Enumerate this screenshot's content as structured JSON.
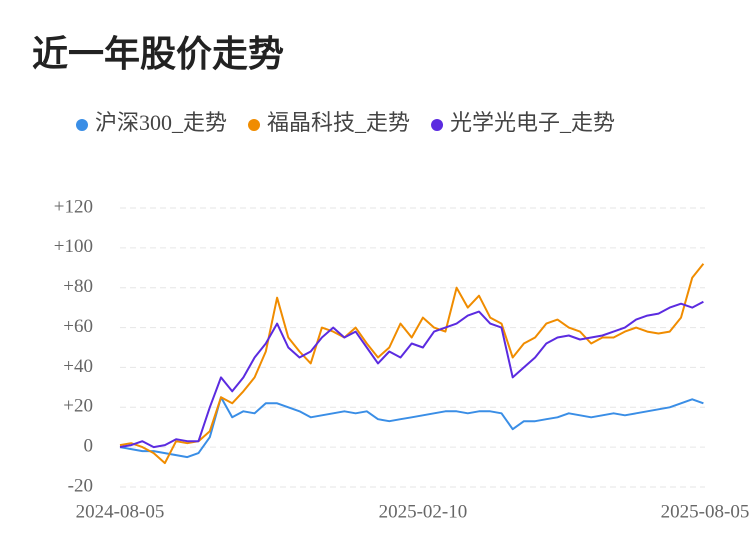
{
  "chart_data": {
    "type": "line",
    "title": "近一年股价走势",
    "x": [
      "2024-08-05",
      "2024-08-12",
      "2024-08-19",
      "2024-08-26",
      "2024-09-02",
      "2024-09-09",
      "2024-09-16",
      "2024-09-23",
      "2024-09-30",
      "2024-10-07",
      "2024-10-14",
      "2024-10-21",
      "2024-10-28",
      "2024-11-04",
      "2024-11-11",
      "2024-11-18",
      "2024-11-25",
      "2024-12-02",
      "2024-12-09",
      "2024-12-16",
      "2024-12-23",
      "2024-12-30",
      "2025-01-06",
      "2025-01-13",
      "2025-01-20",
      "2025-01-27",
      "2025-02-03",
      "2025-02-10",
      "2025-02-17",
      "2025-02-24",
      "2025-03-03",
      "2025-03-10",
      "2025-03-17",
      "2025-03-24",
      "2025-03-31",
      "2025-04-07",
      "2025-04-14",
      "2025-04-21",
      "2025-04-28",
      "2025-05-05",
      "2025-05-12",
      "2025-05-19",
      "2025-05-26",
      "2025-06-02",
      "2025-06-09",
      "2025-06-16",
      "2025-06-23",
      "2025-06-30",
      "2025-07-07",
      "2025-07-14",
      "2025-07-21",
      "2025-07-28",
      "2025-08-04"
    ],
    "series": [
      {
        "name": "沪深300_走势",
        "color": "#3a8ee6",
        "values": [
          0,
          -1,
          -2,
          -2,
          -3,
          -4,
          -5,
          -3,
          5,
          25,
          15,
          18,
          17,
          22,
          22,
          20,
          18,
          15,
          16,
          17,
          18,
          17,
          18,
          14,
          13,
          14,
          15,
          16,
          17,
          18,
          18,
          17,
          18,
          18,
          17,
          9,
          13,
          13,
          14,
          15,
          17,
          16,
          15,
          16,
          17,
          16,
          17,
          18,
          19,
          20,
          22,
          24,
          22
        ]
      },
      {
        "name": "福晶科技_走势",
        "color": "#f08c00",
        "values": [
          1,
          2,
          0,
          -3,
          -8,
          3,
          2,
          3,
          8,
          25,
          22,
          28,
          35,
          48,
          75,
          55,
          48,
          42,
          60,
          58,
          55,
          60,
          52,
          45,
          50,
          62,
          55,
          65,
          60,
          58,
          80,
          70,
          76,
          65,
          62,
          45,
          52,
          55,
          62,
          64,
          60,
          58,
          52,
          55,
          55,
          58,
          60,
          58,
          57,
          58,
          65,
          85,
          92
        ]
      },
      {
        "name": "光学光电子_走势",
        "color": "#5b2be0",
        "values": [
          0,
          1,
          3,
          0,
          1,
          4,
          3,
          3,
          20,
          35,
          28,
          35,
          45,
          52,
          62,
          50,
          45,
          48,
          55,
          60,
          55,
          58,
          50,
          42,
          48,
          45,
          52,
          50,
          58,
          60,
          62,
          66,
          68,
          62,
          60,
          35,
          40,
          45,
          52,
          55,
          56,
          54,
          55,
          56,
          58,
          60,
          64,
          66,
          67,
          70,
          72,
          70,
          73
        ]
      }
    ],
    "xlim": [
      "2024-08-05",
      "2025-08-05"
    ],
    "xticks": [
      "2024-08-05",
      "2025-02-10",
      "2025-08-05"
    ],
    "ylim": [
      -20,
      120
    ],
    "yticks": [
      -20,
      0,
      {
        "value": 20,
        "label": "+20"
      },
      {
        "value": 40,
        "label": "+40"
      },
      {
        "value": 60,
        "label": "+60"
      },
      {
        "value": 80,
        "label": "+80"
      },
      {
        "value": 100,
        "label": "+100"
      },
      {
        "value": 120,
        "label": "+120"
      }
    ],
    "grid": true
  }
}
